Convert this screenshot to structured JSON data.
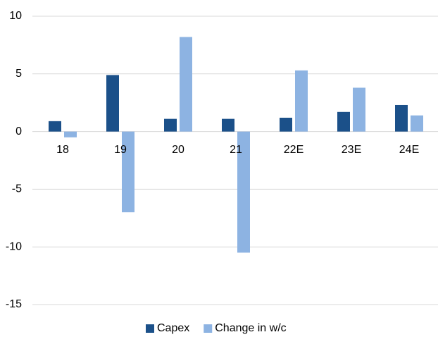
{
  "chart_data": {
    "type": "bar",
    "categories": [
      "18",
      "19",
      "20",
      "21",
      "22E",
      "23E",
      "24E"
    ],
    "series": [
      {
        "name": "Capex",
        "color": "#1b5089",
        "values": [
          0.9,
          4.9,
          1.1,
          1.1,
          1.2,
          1.7,
          2.3
        ]
      },
      {
        "name": "Change in w/c",
        "color": "#8db3e2",
        "values": [
          -0.5,
          -7.0,
          8.2,
          -10.5,
          5.3,
          3.8,
          1.4
        ]
      }
    ],
    "ylim": [
      -15,
      10
    ],
    "yticks": [
      -15,
      -10,
      -5,
      0,
      5,
      10
    ],
    "grid": true,
    "legend": "bottom"
  }
}
